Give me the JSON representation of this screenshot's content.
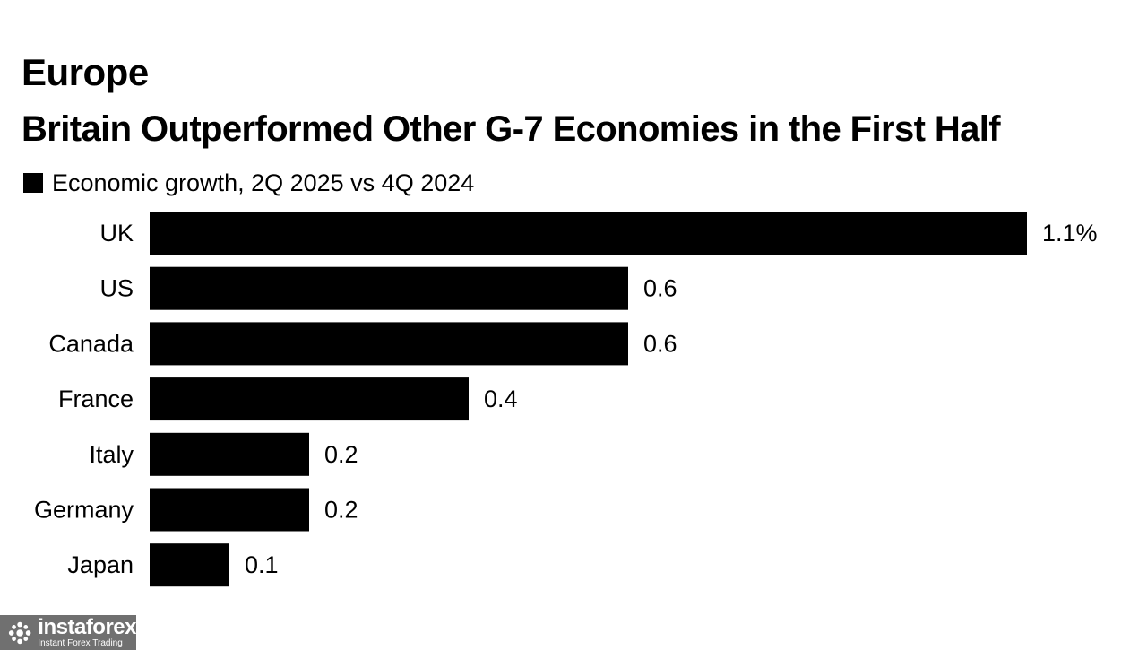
{
  "kicker": "Europe",
  "title": "Britain Outperformed Other G-7 Economies in the First Half",
  "legend": {
    "label": "Economic growth, 2Q 2025 vs 4Q 2024",
    "color": "#000000"
  },
  "watermark": {
    "brand": "instaforex",
    "tagline": "Instant Forex Trading",
    "icon": "instaforex-logo-icon"
  },
  "chart_data": {
    "type": "bar",
    "orientation": "horizontal",
    "title": "Britain Outperformed Other G-7 Economies in the First Half",
    "categories": [
      "UK",
      "US",
      "Canada",
      "France",
      "Italy",
      "Germany",
      "Japan"
    ],
    "series": [
      {
        "name": "Economic growth, 2Q 2025 vs 4Q 2024",
        "values": [
          1.1,
          0.6,
          0.6,
          0.4,
          0.2,
          0.2,
          0.1
        ],
        "color": "#000000"
      }
    ],
    "value_labels": [
      "1.1%",
      "0.6",
      "0.6",
      "0.4",
      "0.2",
      "0.2",
      "0.1"
    ],
    "xlim": [
      0,
      1.1
    ],
    "grid": false,
    "legend_position": "top-left"
  }
}
